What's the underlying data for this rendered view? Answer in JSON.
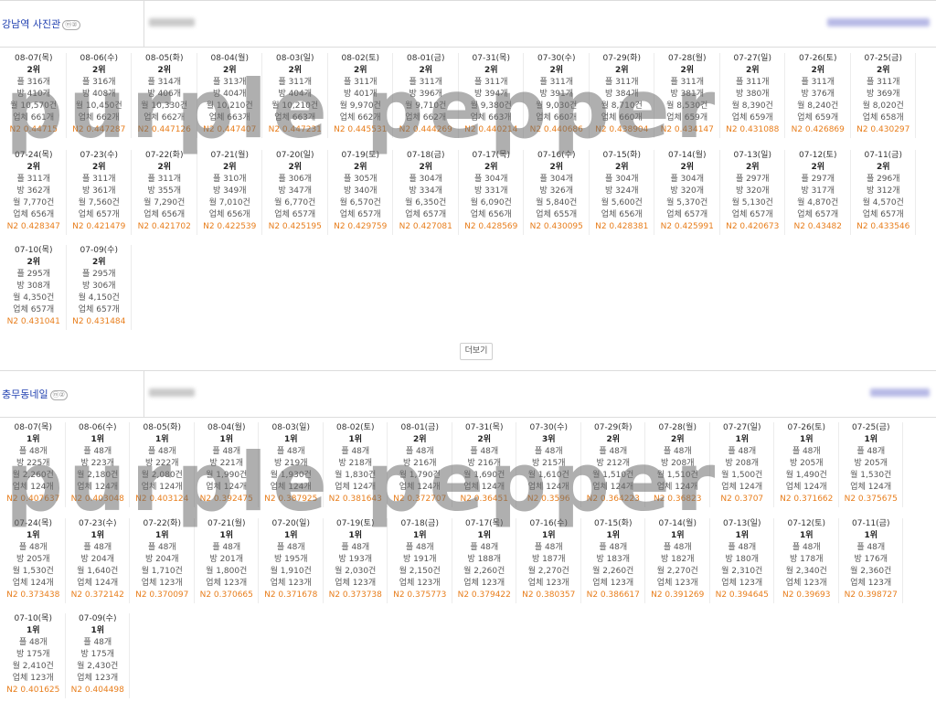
{
  "sections": [
    {
      "name": "강남역 사진관",
      "badge": "ⓜ②",
      "cells": [
        {
          "date": "08-07(목)",
          "rank": "2위",
          "l1": "플 316개",
          "l2": "방 410개",
          "l3": "월 10,570건",
          "l4": "업체 661개",
          "n2": "N2 0.44715"
        },
        {
          "date": "08-06(수)",
          "rank": "2위",
          "l1": "플 316개",
          "l2": "방 408개",
          "l3": "월 10,450건",
          "l4": "업체 662개",
          "n2": "N2 0.447287"
        },
        {
          "date": "08-05(화)",
          "rank": "2위",
          "l1": "플 314개",
          "l2": "방 406개",
          "l3": "월 10,330건",
          "l4": "업체 662개",
          "n2": "N2 0.447126"
        },
        {
          "date": "08-04(월)",
          "rank": "2위",
          "l1": "플 313개",
          "l2": "방 404개",
          "l3": "월 10,210건",
          "l4": "업체 663개",
          "n2": "N2 0.447407"
        },
        {
          "date": "08-03(일)",
          "rank": "2위",
          "l1": "플 311개",
          "l2": "방 404개",
          "l3": "월 10,210건",
          "l4": "업체 663개",
          "n2": "N2 0.447231"
        },
        {
          "date": "08-02(토)",
          "rank": "2위",
          "l1": "플 311개",
          "l2": "방 401개",
          "l3": "월 9,970건",
          "l4": "업체 662개",
          "n2": "N2 0.445531"
        },
        {
          "date": "08-01(금)",
          "rank": "2위",
          "l1": "플 311개",
          "l2": "방 396개",
          "l3": "월 9,710건",
          "l4": "업체 662개",
          "n2": "N2 0.444269"
        },
        {
          "date": "07-31(목)",
          "rank": "2위",
          "l1": "플 311개",
          "l2": "방 394개",
          "l3": "월 9,380건",
          "l4": "업체 663개",
          "n2": "N2 0.440214"
        },
        {
          "date": "07-30(수)",
          "rank": "2위",
          "l1": "플 311개",
          "l2": "방 391개",
          "l3": "월 9,030건",
          "l4": "업체 660개",
          "n2": "N2 0.440686"
        },
        {
          "date": "07-29(화)",
          "rank": "2위",
          "l1": "플 311개",
          "l2": "방 384개",
          "l3": "월 8,710건",
          "l4": "업체 660개",
          "n2": "N2 0.438904"
        },
        {
          "date": "07-28(월)",
          "rank": "2위",
          "l1": "플 311개",
          "l2": "방 381개",
          "l3": "월 8,530건",
          "l4": "업체 659개",
          "n2": "N2 0.434147"
        },
        {
          "date": "07-27(일)",
          "rank": "2위",
          "l1": "플 311개",
          "l2": "방 380개",
          "l3": "월 8,390건",
          "l4": "업체 659개",
          "n2": "N2 0.431088"
        },
        {
          "date": "07-26(토)",
          "rank": "2위",
          "l1": "플 311개",
          "l2": "방 376개",
          "l3": "월 8,240건",
          "l4": "업체 659개",
          "n2": "N2 0.426869"
        },
        {
          "date": "07-25(금)",
          "rank": "2위",
          "l1": "플 311개",
          "l2": "방 369개",
          "l3": "월 8,020건",
          "l4": "업체 658개",
          "n2": "N2 0.430297"
        },
        {
          "date": "07-24(목)",
          "rank": "2위",
          "l1": "플 311개",
          "l2": "방 362개",
          "l3": "월 7,770건",
          "l4": "업체 656개",
          "n2": "N2 0.428347"
        },
        {
          "date": "07-23(수)",
          "rank": "2위",
          "l1": "플 311개",
          "l2": "방 361개",
          "l3": "월 7,560건",
          "l4": "업체 657개",
          "n2": "N2 0.421479"
        },
        {
          "date": "07-22(화)",
          "rank": "2위",
          "l1": "플 311개",
          "l2": "방 355개",
          "l3": "월 7,290건",
          "l4": "업체 656개",
          "n2": "N2 0.421702"
        },
        {
          "date": "07-21(월)",
          "rank": "2위",
          "l1": "플 310개",
          "l2": "방 349개",
          "l3": "월 7,010건",
          "l4": "업체 656개",
          "n2": "N2 0.422539"
        },
        {
          "date": "07-20(일)",
          "rank": "2위",
          "l1": "플 306개",
          "l2": "방 347개",
          "l3": "월 6,770건",
          "l4": "업체 657개",
          "n2": "N2 0.425195"
        },
        {
          "date": "07-19(토)",
          "rank": "2위",
          "l1": "플 305개",
          "l2": "방 340개",
          "l3": "월 6,570건",
          "l4": "업체 657개",
          "n2": "N2 0.429759"
        },
        {
          "date": "07-18(금)",
          "rank": "2위",
          "l1": "플 304개",
          "l2": "방 334개",
          "l3": "월 6,350건",
          "l4": "업체 657개",
          "n2": "N2 0.427081"
        },
        {
          "date": "07-17(목)",
          "rank": "2위",
          "l1": "플 304개",
          "l2": "방 331개",
          "l3": "월 6,090건",
          "l4": "업체 656개",
          "n2": "N2 0.428569"
        },
        {
          "date": "07-16(수)",
          "rank": "2위",
          "l1": "플 304개",
          "l2": "방 326개",
          "l3": "월 5,840건",
          "l4": "업체 655개",
          "n2": "N2 0.430095"
        },
        {
          "date": "07-15(화)",
          "rank": "2위",
          "l1": "플 304개",
          "l2": "방 324개",
          "l3": "월 5,600건",
          "l4": "업체 656개",
          "n2": "N2 0.428381"
        },
        {
          "date": "07-14(월)",
          "rank": "2위",
          "l1": "플 304개",
          "l2": "방 320개",
          "l3": "월 5,370건",
          "l4": "업체 657개",
          "n2": "N2 0.425991"
        },
        {
          "date": "07-13(일)",
          "rank": "2위",
          "l1": "플 297개",
          "l2": "방 320개",
          "l3": "월 5,130건",
          "l4": "업체 657개",
          "n2": "N2 0.420673"
        },
        {
          "date": "07-12(토)",
          "rank": "2위",
          "l1": "플 297개",
          "l2": "방 317개",
          "l3": "월 4,870건",
          "l4": "업체 657개",
          "n2": "N2 0.43482"
        },
        {
          "date": "07-11(금)",
          "rank": "2위",
          "l1": "플 296개",
          "l2": "방 312개",
          "l3": "월 4,570건",
          "l4": "업체 657개",
          "n2": "N2 0.433546"
        },
        {
          "date": "07-10(목)",
          "rank": "2위",
          "l1": "플 295개",
          "l2": "방 308개",
          "l3": "월 4,350건",
          "l4": "업체 657개",
          "n2": "N2 0.431041"
        },
        {
          "date": "07-09(수)",
          "rank": "2위",
          "l1": "플 295개",
          "l2": "방 306개",
          "l3": "월 4,150건",
          "l4": "업체 657개",
          "n2": "N2 0.431484"
        }
      ]
    },
    {
      "name": "충무동네일",
      "badge": "ⓜ②",
      "cells": [
        {
          "date": "08-07(목)",
          "rank": "1위",
          "l1": "플 48개",
          "l2": "방 225개",
          "l3": "월 2,260건",
          "l4": "업체 124개",
          "n2": "N2 0.407637"
        },
        {
          "date": "08-06(수)",
          "rank": "1위",
          "l1": "플 48개",
          "l2": "방 223개",
          "l3": "월 2,180건",
          "l4": "업체 124개",
          "n2": "N2 0.403048"
        },
        {
          "date": "08-05(화)",
          "rank": "1위",
          "l1": "플 48개",
          "l2": "방 222개",
          "l3": "월 2,080건",
          "l4": "업체 124개",
          "n2": "N2 0.403124"
        },
        {
          "date": "08-04(월)",
          "rank": "1위",
          "l1": "플 48개",
          "l2": "방 221개",
          "l3": "월 1,990건",
          "l4": "업체 124개",
          "n2": "N2 0.392475"
        },
        {
          "date": "08-03(일)",
          "rank": "1위",
          "l1": "플 48개",
          "l2": "방 219개",
          "l3": "월 1,930건",
          "l4": "업체 124개",
          "n2": "N2 0.387925"
        },
        {
          "date": "08-02(토)",
          "rank": "1위",
          "l1": "플 48개",
          "l2": "방 218개",
          "l3": "월 1,830건",
          "l4": "업체 124개",
          "n2": "N2 0.381643"
        },
        {
          "date": "08-01(금)",
          "rank": "2위",
          "l1": "플 48개",
          "l2": "방 216개",
          "l3": "월 1,790건",
          "l4": "업체 124개",
          "n2": "N2 0.372707"
        },
        {
          "date": "07-31(목)",
          "rank": "2위",
          "l1": "플 48개",
          "l2": "방 216개",
          "l3": "월 1,690건",
          "l4": "업체 124개",
          "n2": "N2 0.36451"
        },
        {
          "date": "07-30(수)",
          "rank": "3위",
          "l1": "플 48개",
          "l2": "방 215개",
          "l3": "월 1,610건",
          "l4": "업체 124개",
          "n2": "N2 0.3596"
        },
        {
          "date": "07-29(화)",
          "rank": "2위",
          "l1": "플 48개",
          "l2": "방 212개",
          "l3": "월 1,510건",
          "l4": "업체 124개",
          "n2": "N2 0.364223"
        },
        {
          "date": "07-28(월)",
          "rank": "2위",
          "l1": "플 48개",
          "l2": "방 208개",
          "l3": "월 1,510건",
          "l4": "업체 124개",
          "n2": "N2 0.36823"
        },
        {
          "date": "07-27(일)",
          "rank": "1위",
          "l1": "플 48개",
          "l2": "방 208개",
          "l3": "월 1,500건",
          "l4": "업체 124개",
          "n2": "N2 0.3707"
        },
        {
          "date": "07-26(토)",
          "rank": "1위",
          "l1": "플 48개",
          "l2": "방 205개",
          "l3": "월 1,490건",
          "l4": "업체 124개",
          "n2": "N2 0.371662"
        },
        {
          "date": "07-25(금)",
          "rank": "1위",
          "l1": "플 48개",
          "l2": "방 205개",
          "l3": "월 1,530건",
          "l4": "업체 124개",
          "n2": "N2 0.375675"
        },
        {
          "date": "07-24(목)",
          "rank": "1위",
          "l1": "플 48개",
          "l2": "방 205개",
          "l3": "월 1,530건",
          "l4": "업체 124개",
          "n2": "N2 0.373438"
        },
        {
          "date": "07-23(수)",
          "rank": "1위",
          "l1": "플 48개",
          "l2": "방 204개",
          "l3": "월 1,640건",
          "l4": "업체 124개",
          "n2": "N2 0.372142"
        },
        {
          "date": "07-22(화)",
          "rank": "1위",
          "l1": "플 48개",
          "l2": "방 204개",
          "l3": "월 1,710건",
          "l4": "업체 123개",
          "n2": "N2 0.370097"
        },
        {
          "date": "07-21(월)",
          "rank": "1위",
          "l1": "플 48개",
          "l2": "방 201개",
          "l3": "월 1,800건",
          "l4": "업체 123개",
          "n2": "N2 0.370665"
        },
        {
          "date": "07-20(일)",
          "rank": "1위",
          "l1": "플 48개",
          "l2": "방 195개",
          "l3": "월 1,910건",
          "l4": "업체 123개",
          "n2": "N2 0.371678"
        },
        {
          "date": "07-19(토)",
          "rank": "1위",
          "l1": "플 48개",
          "l2": "방 193개",
          "l3": "월 2,030건",
          "l4": "업체 123개",
          "n2": "N2 0.373738"
        },
        {
          "date": "07-18(금)",
          "rank": "1위",
          "l1": "플 48개",
          "l2": "방 191개",
          "l3": "월 2,150건",
          "l4": "업체 123개",
          "n2": "N2 0.375773"
        },
        {
          "date": "07-17(목)",
          "rank": "1위",
          "l1": "플 48개",
          "l2": "방 188개",
          "l3": "월 2,260건",
          "l4": "업체 123개",
          "n2": "N2 0.379422"
        },
        {
          "date": "07-16(수)",
          "rank": "1위",
          "l1": "플 48개",
          "l2": "방 187개",
          "l3": "월 2,270건",
          "l4": "업체 123개",
          "n2": "N2 0.380357"
        },
        {
          "date": "07-15(화)",
          "rank": "1위",
          "l1": "플 48개",
          "l2": "방 183개",
          "l3": "월 2,260건",
          "l4": "업체 123개",
          "n2": "N2 0.386617"
        },
        {
          "date": "07-14(월)",
          "rank": "1위",
          "l1": "플 48개",
          "l2": "방 182개",
          "l3": "월 2,270건",
          "l4": "업체 123개",
          "n2": "N2 0.391269"
        },
        {
          "date": "07-13(일)",
          "rank": "1위",
          "l1": "플 48개",
          "l2": "방 180개",
          "l3": "월 2,310건",
          "l4": "업체 123개",
          "n2": "N2 0.394645"
        },
        {
          "date": "07-12(토)",
          "rank": "1위",
          "l1": "플 48개",
          "l2": "방 178개",
          "l3": "월 2,340건",
          "l4": "업체 123개",
          "n2": "N2 0.39693"
        },
        {
          "date": "07-11(금)",
          "rank": "1위",
          "l1": "플 48개",
          "l2": "방 176개",
          "l3": "월 2,360건",
          "l4": "업체 123개",
          "n2": "N2 0.398727"
        },
        {
          "date": "07-10(목)",
          "rank": "1위",
          "l1": "플 48개",
          "l2": "방 175개",
          "l3": "월 2,410건",
          "l4": "업체 123개",
          "n2": "N2 0.401625"
        },
        {
          "date": "07-09(수)",
          "rank": "1위",
          "l1": "플 48개",
          "l2": "방 175개",
          "l3": "월 2,430건",
          "l4": "업체 123개",
          "n2": "N2 0.404498"
        }
      ]
    }
  ],
  "more_button": "더보기",
  "watermark": "purple pepper",
  "colors": {
    "accent_n2": "#e87e1c",
    "section_title": "#1f3fb0"
  }
}
